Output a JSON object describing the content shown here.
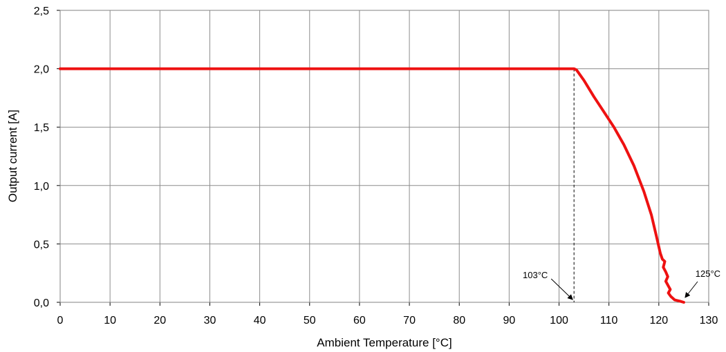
{
  "chart_data": {
    "type": "line",
    "title": "",
    "xlabel": "Ambient Temperature [°C]",
    "ylabel": "Output current [A]",
    "xlim": [
      0,
      130
    ],
    "ylim": [
      0,
      2.5
    ],
    "x_ticks": [
      0,
      10,
      20,
      30,
      40,
      50,
      60,
      70,
      80,
      90,
      100,
      110,
      120,
      130
    ],
    "x_tick_labels": [
      "0",
      "10",
      "20",
      "30",
      "40",
      "50",
      "60",
      "70",
      "80",
      "90",
      "100",
      "110",
      "120",
      "130"
    ],
    "y_ticks": [
      0,
      0.5,
      1.0,
      1.5,
      2.0,
      2.5
    ],
    "y_tick_labels": [
      "0,0",
      "0,5",
      "1,0",
      "1,5",
      "2,0",
      "2,5"
    ],
    "grid": true,
    "series": [
      {
        "color": "#ee1111",
        "x": [
          0,
          103,
          103.5,
          105,
          107,
          109,
          111,
          113,
          115,
          117,
          118.5,
          119.5,
          120.3,
          120.7,
          121.2,
          120.9,
          121.4,
          121.8,
          121.4,
          121.9,
          122.3,
          121.9,
          122.4,
          123.2,
          124.2,
          125
        ],
        "y": [
          2.0,
          2.0,
          1.99,
          1.9,
          1.76,
          1.63,
          1.5,
          1.35,
          1.17,
          0.95,
          0.75,
          0.57,
          0.42,
          0.37,
          0.35,
          0.3,
          0.26,
          0.22,
          0.18,
          0.14,
          0.11,
          0.08,
          0.05,
          0.02,
          0.01,
          0.0
        ]
      }
    ],
    "annotations": [
      {
        "label": "103°C",
        "x": 103,
        "y": 0.0,
        "marker": "dashed-line-with-arrow"
      },
      {
        "label": "125°C",
        "x": 125,
        "y": 0.0,
        "marker": "arrow"
      }
    ]
  }
}
